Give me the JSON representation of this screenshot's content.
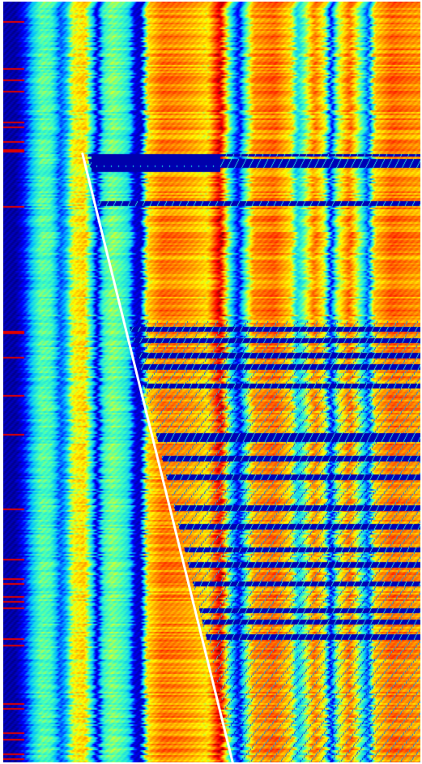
{
  "chart_data": {
    "type": "heatmap",
    "title": "",
    "xlabel": "",
    "ylabel": "",
    "colormap": "jet",
    "colormap_stops": [
      "#00007f",
      "#0000ff",
      "#00bfff",
      "#40ffbf",
      "#ffff00",
      "#ff8000",
      "#ff0000",
      "#7f0000"
    ],
    "value_range": [
      0,
      1
    ],
    "grid": false,
    "legend": "none",
    "n_rows": 470,
    "n_columns": 515,
    "column_profile": [
      {
        "x": 0.0,
        "v": 0.05
      },
      {
        "x": 0.03,
        "v": 0.04
      },
      {
        "x": 0.055,
        "v": 0.18
      },
      {
        "x": 0.075,
        "v": 0.35
      },
      {
        "x": 0.09,
        "v": 0.45
      },
      {
        "x": 0.115,
        "v": 0.42
      },
      {
        "x": 0.135,
        "v": 0.2
      },
      {
        "x": 0.15,
        "v": 0.28
      },
      {
        "x": 0.165,
        "v": 0.55
      },
      {
        "x": 0.195,
        "v": 0.62
      },
      {
        "x": 0.215,
        "v": 0.3
      },
      {
        "x": 0.225,
        "v": 0.08
      },
      {
        "x": 0.24,
        "v": 0.4
      },
      {
        "x": 0.26,
        "v": 0.48
      },
      {
        "x": 0.285,
        "v": 0.42
      },
      {
        "x": 0.3,
        "v": 0.35
      },
      {
        "x": 0.315,
        "v": 0.1
      },
      {
        "x": 0.33,
        "v": 0.08
      },
      {
        "x": 0.345,
        "v": 0.6
      },
      {
        "x": 0.38,
        "v": 0.72
      },
      {
        "x": 0.42,
        "v": 0.7
      },
      {
        "x": 0.455,
        "v": 0.66
      },
      {
        "x": 0.49,
        "v": 0.6
      },
      {
        "x": 0.51,
        "v": 0.8
      },
      {
        "x": 0.52,
        "v": 0.9
      },
      {
        "x": 0.535,
        "v": 0.55
      },
      {
        "x": 0.55,
        "v": 0.3
      },
      {
        "x": 0.565,
        "v": 0.12
      },
      {
        "x": 0.58,
        "v": 0.42
      },
      {
        "x": 0.6,
        "v": 0.68
      },
      {
        "x": 0.65,
        "v": 0.74
      },
      {
        "x": 0.69,
        "v": 0.6
      },
      {
        "x": 0.705,
        "v": 0.32
      },
      {
        "x": 0.72,
        "v": 0.45
      },
      {
        "x": 0.745,
        "v": 0.72
      },
      {
        "x": 0.77,
        "v": 0.55
      },
      {
        "x": 0.785,
        "v": 0.12
      },
      {
        "x": 0.8,
        "v": 0.5
      },
      {
        "x": 0.83,
        "v": 0.74
      },
      {
        "x": 0.86,
        "v": 0.4
      },
      {
        "x": 0.875,
        "v": 0.18
      },
      {
        "x": 0.89,
        "v": 0.62
      },
      {
        "x": 0.93,
        "v": 0.74
      },
      {
        "x": 0.97,
        "v": 0.7
      },
      {
        "x": 1.0,
        "v": 0.68
      }
    ],
    "overlay_line": {
      "color": "#ffffff",
      "from": {
        "column_fraction": 0.19,
        "row_fraction": 0.2
      },
      "to": {
        "column_fraction": 0.55,
        "row_fraction": 1.0
      }
    },
    "dark_band_rows": [
      0.2,
      0.21,
      0.215,
      0.265,
      0.43,
      0.445,
      0.465,
      0.48,
      0.505,
      0.57,
      0.575,
      0.6,
      0.625,
      0.665,
      0.69,
      0.72,
      0.74,
      0.765,
      0.8,
      0.815,
      0.835
    ]
  }
}
